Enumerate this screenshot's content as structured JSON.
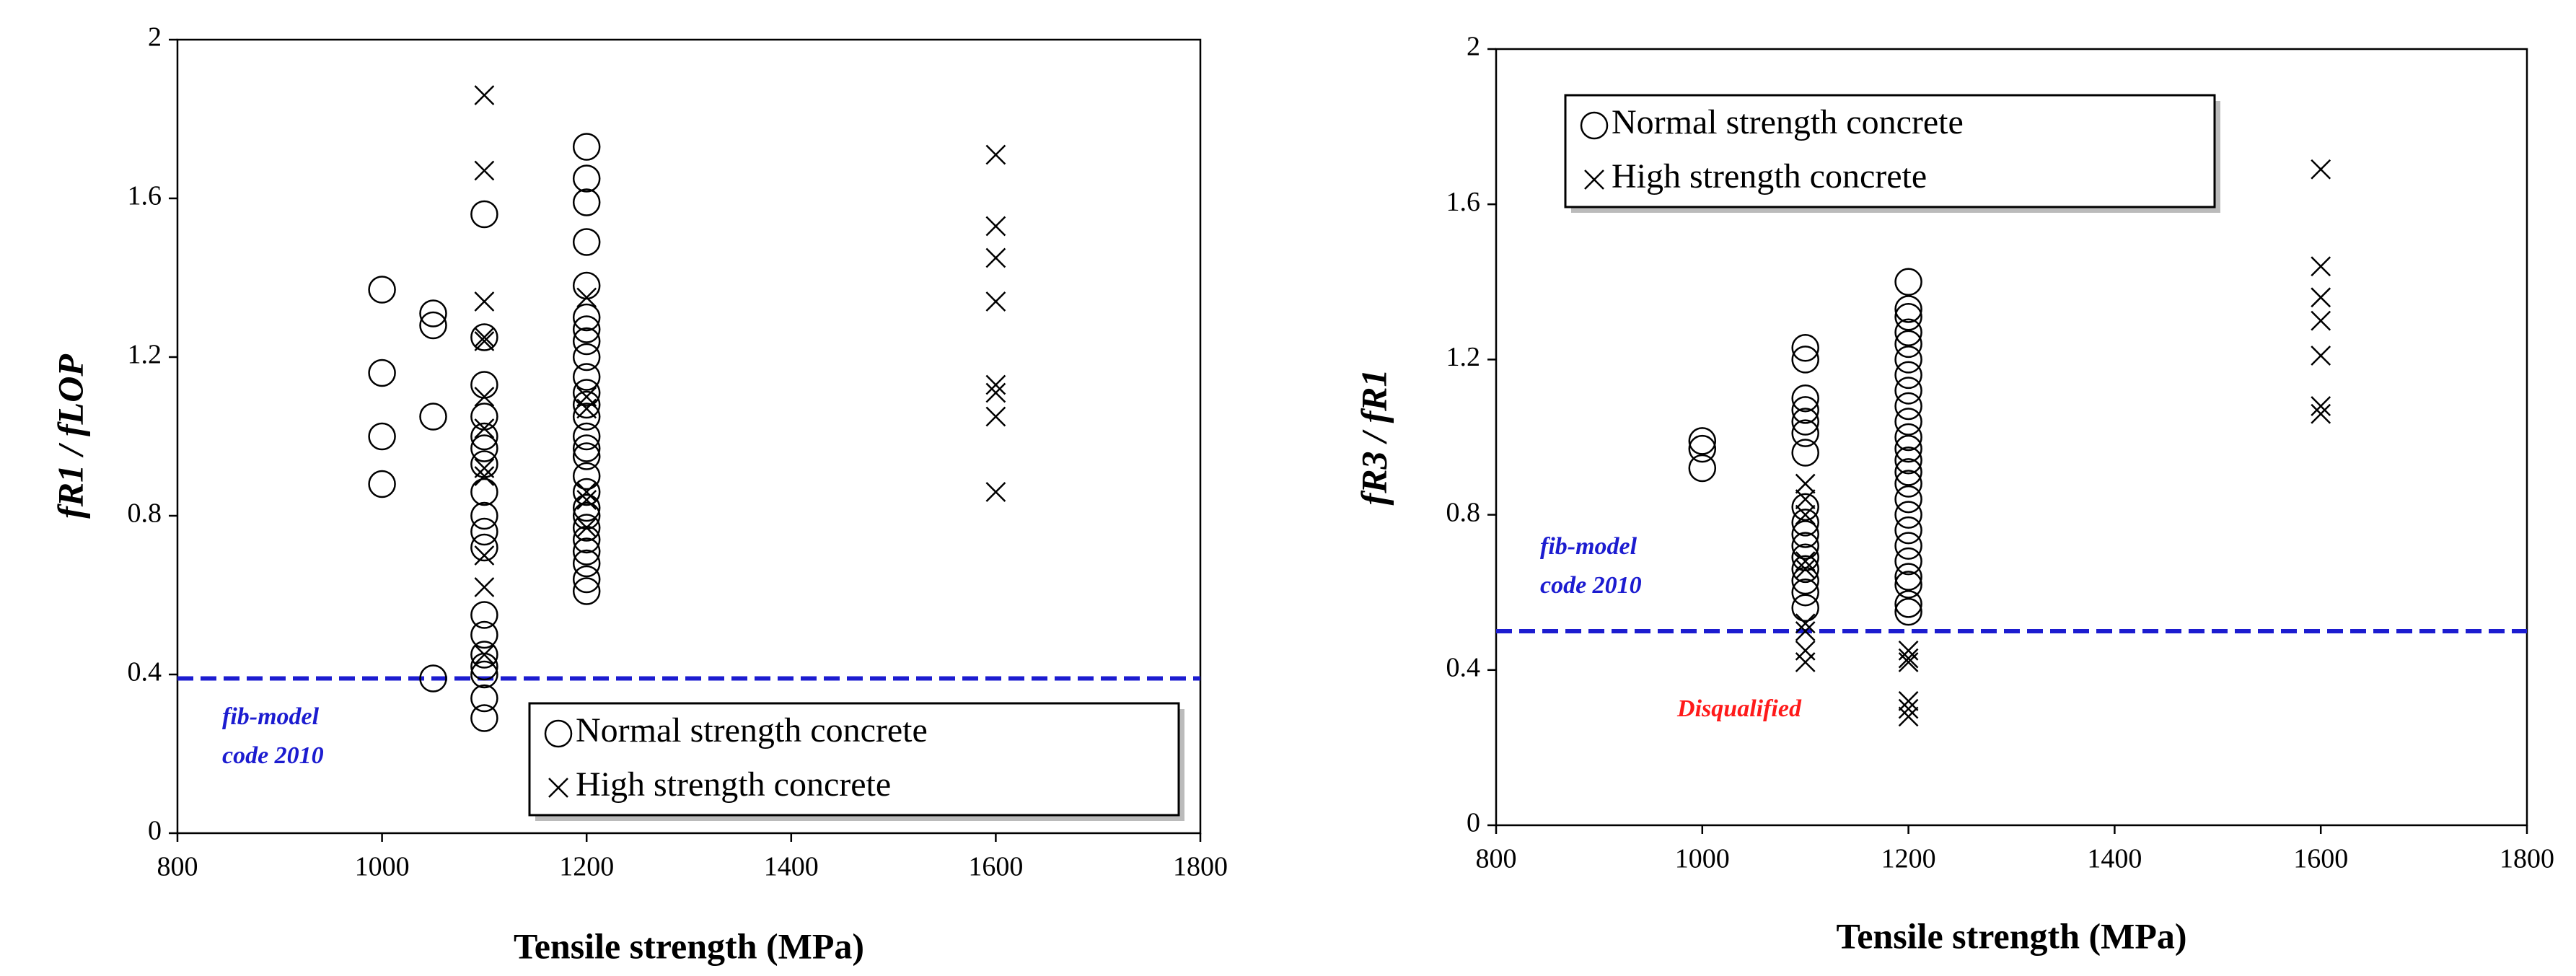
{
  "chart_data": [
    {
      "type": "scatter",
      "xlabel": "Tensile strength (MPa)",
      "ylabel": "fR1 / fLOP",
      "xlim": [
        800,
        1800
      ],
      "xticks": [
        800,
        1000,
        1200,
        1400,
        1600,
        1800
      ],
      "ylim": [
        0,
        2
      ],
      "yticks": [
        0,
        0.4,
        0.8,
        1.2,
        1.6,
        2
      ],
      "legend": "lower right",
      "series": [
        {
          "name": "Normal strength concrete",
          "marker": "circle",
          "color": "#000000",
          "x": [
            1000,
            1000,
            1000,
            1000,
            1050,
            1050,
            1050,
            1050,
            1100,
            1100,
            1100,
            1100,
            1100,
            1100,
            1100,
            1100,
            1100,
            1100,
            1100,
            1100,
            1100,
            1100,
            1100,
            1100,
            1100,
            1100,
            1200,
            1200,
            1200,
            1200,
            1200,
            1200,
            1200,
            1200,
            1200,
            1200,
            1200,
            1200,
            1200,
            1200,
            1200,
            1200,
            1200,
            1200,
            1200,
            1200,
            1200,
            1200,
            1200,
            1200,
            1200,
            1200
          ],
          "values": [
            1.37,
            1.16,
            1.0,
            0.88,
            1.31,
            1.28,
            1.05,
            0.39,
            1.56,
            1.25,
            1.13,
            1.05,
            1.0,
            0.97,
            0.93,
            0.86,
            0.8,
            0.76,
            0.72,
            0.55,
            0.5,
            0.45,
            0.42,
            0.4,
            0.34,
            0.29,
            1.73,
            1.65,
            1.59,
            1.49,
            1.38,
            1.3,
            1.27,
            1.24,
            1.2,
            1.15,
            1.11,
            1.08,
            1.05,
            1.0,
            0.97,
            0.95,
            0.9,
            0.86,
            0.82,
            0.8,
            0.77,
            0.74,
            0.71,
            0.68,
            0.64,
            0.61
          ]
        },
        {
          "name": "High strength concrete",
          "marker": "x",
          "color": "#000000",
          "x": [
            1100,
            1100,
            1100,
            1100,
            1100,
            1100,
            1100,
            1100,
            1100,
            1100,
            1100,
            1100,
            1200,
            1200,
            1200,
            1200,
            1200,
            1200,
            1600,
            1600,
            1600,
            1600,
            1600,
            1600,
            1600,
            1600
          ],
          "values": [
            1.86,
            1.67,
            1.34,
            1.25,
            1.24,
            1.1,
            1.02,
            0.92,
            0.9,
            0.7,
            0.62,
            0.45,
            1.35,
            1.1,
            1.07,
            0.86,
            0.84,
            0.77,
            1.71,
            1.53,
            1.45,
            1.34,
            1.13,
            1.11,
            1.05,
            0.86
          ]
        }
      ],
      "reference_line": {
        "value": 0.39,
        "color": "#1c1cd0",
        "label": [
          "fib-model",
          "code 2010"
        ]
      }
    },
    {
      "type": "scatter",
      "xlabel": "Tensile strength (MPa)",
      "ylabel": "fR3 / fR1",
      "xlim": [
        800,
        1800
      ],
      "xticks": [
        800,
        1000,
        1200,
        1400,
        1600,
        1800
      ],
      "ylim": [
        0,
        2
      ],
      "yticks": [
        0,
        0.4,
        0.8,
        1.2,
        1.6,
        2
      ],
      "legend": "upper left",
      "series": [
        {
          "name": "Normal strength concrete",
          "marker": "circle",
          "color": "#000000",
          "x": [
            1000,
            1000,
            1000,
            1100,
            1100,
            1100,
            1100,
            1100,
            1100,
            1100,
            1100,
            1100,
            1100,
            1100,
            1100,
            1100,
            1100,
            1100,
            1100,
            1200,
            1200,
            1200,
            1200,
            1200,
            1200,
            1200,
            1200,
            1200,
            1200,
            1200,
            1200,
            1200,
            1200,
            1200,
            1200,
            1200,
            1200,
            1200,
            1200,
            1200,
            1200,
            1200,
            1200
          ],
          "values": [
            0.99,
            0.97,
            0.92,
            1.23,
            1.2,
            1.1,
            1.07,
            1.04,
            1.01,
            0.96,
            0.82,
            0.78,
            0.75,
            0.72,
            0.69,
            0.66,
            0.63,
            0.6,
            0.56,
            1.4,
            1.33,
            1.31,
            1.27,
            1.24,
            1.2,
            1.16,
            1.12,
            1.08,
            1.04,
            1.0,
            0.97,
            0.94,
            0.91,
            0.88,
            0.84,
            0.8,
            0.76,
            0.72,
            0.68,
            0.64,
            0.62,
            0.57,
            0.55
          ]
        },
        {
          "name": "High strength concrete",
          "marker": "x",
          "color": "#000000",
          "x": [
            1100,
            1100,
            1100,
            1100,
            1100,
            1100,
            1100,
            1100,
            1100,
            1200,
            1200,
            1200,
            1200,
            1200,
            1200,
            1600,
            1600,
            1600,
            1600,
            1600,
            1600,
            1600
          ],
          "values": [
            0.88,
            0.84,
            0.8,
            0.68,
            0.66,
            0.52,
            0.5,
            0.45,
            0.42,
            0.45,
            0.43,
            0.42,
            0.32,
            0.3,
            0.28,
            1.69,
            1.44,
            1.36,
            1.3,
            1.21,
            1.08,
            1.06
          ]
        }
      ],
      "reference_line": {
        "value": 0.5,
        "color": "#1c1cd0",
        "label": [
          "fib-model",
          "code 2010"
        ]
      },
      "annotation": {
        "text": "Disqualified",
        "color": "#ff1a1a"
      }
    }
  ]
}
